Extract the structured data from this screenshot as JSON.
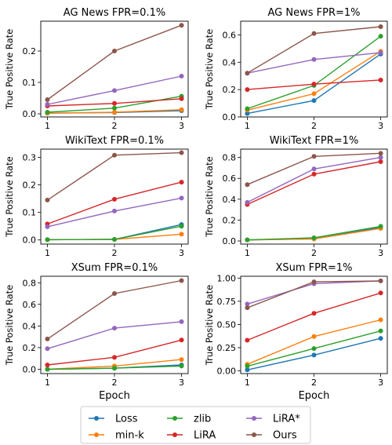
{
  "chart_data": [
    {
      "type": "line",
      "title": "AG News FPR=0.1%",
      "xlabel": "",
      "ylabel": "True Positive Rate",
      "x": [
        1,
        2,
        3
      ],
      "ylim": [
        -0.01,
        0.295
      ],
      "yticks": [
        0.0,
        0.1,
        0.2
      ],
      "ytick_labels": [
        "0.0",
        "0.1",
        "0.2"
      ],
      "series": [
        {
          "name": "Loss",
          "values": [
            0.002,
            0.004,
            0.01
          ]
        },
        {
          "name": "min-k",
          "values": [
            0.002,
            0.005,
            0.013
          ]
        },
        {
          "name": "zlib",
          "values": [
            0.005,
            0.018,
            0.056
          ]
        },
        {
          "name": "LiRA",
          "values": [
            0.025,
            0.033,
            0.048
          ]
        },
        {
          "name": "LiRA*",
          "values": [
            0.03,
            0.074,
            0.12
          ]
        },
        {
          "name": "Ours",
          "values": [
            0.045,
            0.2,
            0.282
          ]
        }
      ]
    },
    {
      "type": "line",
      "title": "AG News FPR=1%",
      "xlabel": "",
      "ylabel": "True Positive Rate",
      "x": [
        1,
        2,
        3
      ],
      "ylim": [
        0.0,
        0.7
      ],
      "yticks": [
        0.0,
        0.2,
        0.4,
        0.6
      ],
      "ytick_labels": [
        "0.0",
        "0.2",
        "0.4",
        "0.6"
      ],
      "series": [
        {
          "name": "Loss",
          "values": [
            0.025,
            0.12,
            0.46
          ]
        },
        {
          "name": "min-k",
          "values": [
            0.05,
            0.17,
            0.48
          ]
        },
        {
          "name": "zlib",
          "values": [
            0.06,
            0.23,
            0.59
          ]
        },
        {
          "name": "LiRA",
          "values": [
            0.2,
            0.24,
            0.27
          ]
        },
        {
          "name": "LiRA*",
          "values": [
            0.32,
            0.42,
            0.47
          ]
        },
        {
          "name": "Ours",
          "values": [
            0.32,
            0.61,
            0.66
          ]
        }
      ]
    },
    {
      "type": "line",
      "title": "WikiText FPR=0.1%",
      "xlabel": "",
      "ylabel": "True Positive Rate",
      "x": [
        1,
        2,
        3
      ],
      "ylim": [
        -0.015,
        0.33
      ],
      "yticks": [
        0.0,
        0.1,
        0.2,
        0.3
      ],
      "ytick_labels": [
        "0.0",
        "0.1",
        "0.2",
        "0.3"
      ],
      "series": [
        {
          "name": "Loss",
          "values": [
            0.001,
            0.002,
            0.056
          ]
        },
        {
          "name": "min-k",
          "values": [
            0.001,
            0.002,
            0.021
          ]
        },
        {
          "name": "zlib",
          "values": [
            0.001,
            0.002,
            0.05
          ]
        },
        {
          "name": "LiRA",
          "values": [
            0.058,
            0.148,
            0.21
          ]
        },
        {
          "name": "LiRA*",
          "values": [
            0.048,
            0.105,
            0.152
          ]
        },
        {
          "name": "Ours",
          "values": [
            0.145,
            0.308,
            0.317
          ]
        }
      ]
    },
    {
      "type": "line",
      "title": "WikiText FPR=1%",
      "xlabel": "",
      "ylabel": "True Positive Rate",
      "x": [
        1,
        2,
        3
      ],
      "ylim": [
        -0.03,
        0.88
      ],
      "yticks": [
        0.0,
        0.2,
        0.4,
        0.6,
        0.8
      ],
      "ytick_labels": [
        "0.0",
        "0.2",
        "0.4",
        "0.6",
        "0.8"
      ],
      "series": [
        {
          "name": "Loss",
          "values": [
            0.01,
            0.02,
            0.13
          ]
        },
        {
          "name": "min-k",
          "values": [
            0.01,
            0.02,
            0.12
          ]
        },
        {
          "name": "zlib",
          "values": [
            0.01,
            0.03,
            0.14
          ]
        },
        {
          "name": "LiRA",
          "values": [
            0.35,
            0.64,
            0.76
          ]
        },
        {
          "name": "LiRA*",
          "values": [
            0.37,
            0.69,
            0.8
          ]
        },
        {
          "name": "Ours",
          "values": [
            0.54,
            0.81,
            0.84
          ]
        }
      ]
    },
    {
      "type": "line",
      "title": "XSum FPR=0.1%",
      "xlabel": "Epoch",
      "ylabel": "True Positive Rate",
      "x": [
        1,
        2,
        3
      ],
      "ylim": [
        -0.04,
        0.86
      ],
      "yticks": [
        0.0,
        0.2,
        0.4,
        0.6,
        0.8
      ],
      "ytick_labels": [
        "0.0",
        "0.2",
        "0.4",
        "0.6",
        "0.8"
      ],
      "series": [
        {
          "name": "Loss",
          "values": [
            0.0,
            0.01,
            0.04
          ]
        },
        {
          "name": "min-k",
          "values": [
            0.0,
            0.03,
            0.09
          ]
        },
        {
          "name": "zlib",
          "values": [
            0.0,
            0.01,
            0.03
          ]
        },
        {
          "name": "LiRA",
          "values": [
            0.04,
            0.11,
            0.27
          ]
        },
        {
          "name": "LiRA*",
          "values": [
            0.19,
            0.38,
            0.44
          ]
        },
        {
          "name": "Ours",
          "values": [
            0.28,
            0.7,
            0.82
          ]
        }
      ]
    },
    {
      "type": "line",
      "title": "XSum FPR=1%",
      "xlabel": "Epoch",
      "ylabel": "True Positive Rate",
      "x": [
        1,
        2,
        3
      ],
      "ylim": [
        -0.03,
        1.02
      ],
      "yticks": [
        0.0,
        0.25,
        0.5,
        0.75,
        1.0
      ],
      "ytick_labels": [
        "0.00",
        "0.25",
        "0.50",
        "0.75",
        "1.00"
      ],
      "series": [
        {
          "name": "Loss",
          "values": [
            0.01,
            0.17,
            0.35
          ]
        },
        {
          "name": "min-k",
          "values": [
            0.07,
            0.37,
            0.55
          ]
        },
        {
          "name": "zlib",
          "values": [
            0.05,
            0.24,
            0.43
          ]
        },
        {
          "name": "LiRA",
          "values": [
            0.33,
            0.62,
            0.84
          ]
        },
        {
          "name": "LiRA*",
          "values": [
            0.72,
            0.94,
            0.97
          ]
        },
        {
          "name": "Ours",
          "values": [
            0.68,
            0.96,
            0.97
          ]
        }
      ]
    }
  ],
  "legend": {
    "placement": "bottom-center",
    "entries": [
      {
        "name": "Loss",
        "color": "#1f77b4"
      },
      {
        "name": "min-k",
        "color": "#ff7f0e"
      },
      {
        "name": "zlib",
        "color": "#2ca02c"
      },
      {
        "name": "LiRA",
        "color": "#d62728"
      },
      {
        "name": "LiRA*",
        "color": "#9467bd"
      },
      {
        "name": "Ours",
        "color": "#8c564b"
      }
    ]
  },
  "series_colors": {
    "Loss": "#1f77b4",
    "min-k": "#ff7f0e",
    "zlib": "#2ca02c",
    "LiRA": "#d62728",
    "LiRA*": "#9467bd",
    "Ours": "#8c564b"
  }
}
